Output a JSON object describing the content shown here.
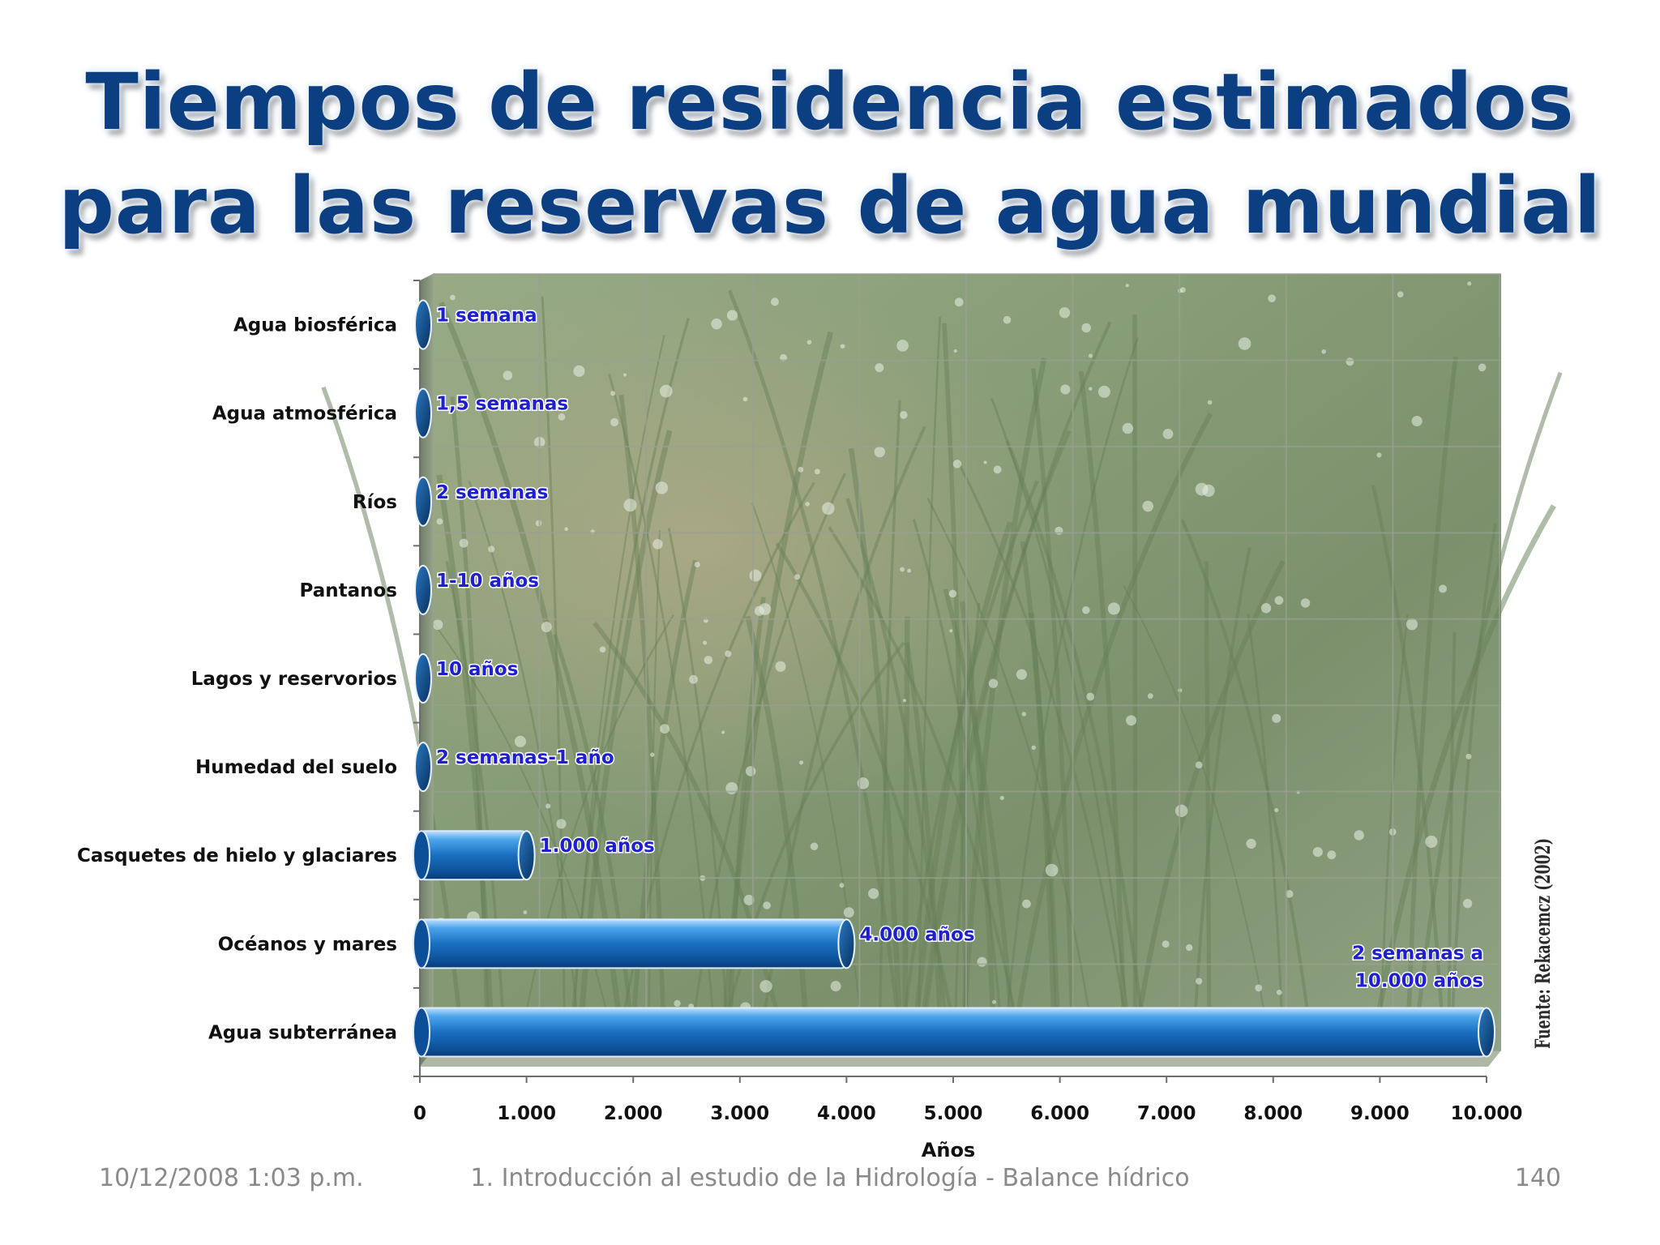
{
  "slide": {
    "title_line1": "Tiempos de residencia estimados",
    "title_line2": "para las reservas de agua mundial",
    "footer_date": "10/12/2008 1:03 p.m.",
    "footer_center": "1. Introducción al estudio de la Hidrología - Balance hídrico",
    "footer_page": "140"
  },
  "chart_data": {
    "type": "bar",
    "orientation": "horizontal",
    "title": "Tiempos de residencia estimados para las reservas de agua mundial",
    "xlabel": "Años",
    "ylabel": "",
    "xlim": [
      0,
      10000
    ],
    "x_ticks": [
      "0",
      "1.000",
      "2.000",
      "3.000",
      "4.000",
      "5.000",
      "6.000",
      "7.000",
      "8.000",
      "9.000",
      "10.000"
    ],
    "categories": [
      "Agua biosférica",
      "Agua atmosférica",
      "Ríos",
      "Pantanos",
      "Lagos y reservorios",
      "Humedad del suelo",
      "Casquetes de hielo y glaciares",
      "Océanos y mares",
      "Agua subterránea"
    ],
    "values": [
      0.02,
      0.03,
      0.04,
      10,
      10,
      1,
      1000,
      4000,
      10000
    ],
    "data_labels": [
      "1 semana",
      "1,5 semanas",
      "2 semanas",
      "1-10 años",
      "10 años",
      "2 semanas-1 año",
      "1.000 años",
      "4.000 años",
      "2 semanas a 10.000 años"
    ],
    "source": "Fuente: Rekacemcz (2002)",
    "grid": true,
    "bar_color": "#1a6fc0",
    "label_color": "#1f1fd2",
    "background": "photo of green grass blades with water droplets"
  }
}
